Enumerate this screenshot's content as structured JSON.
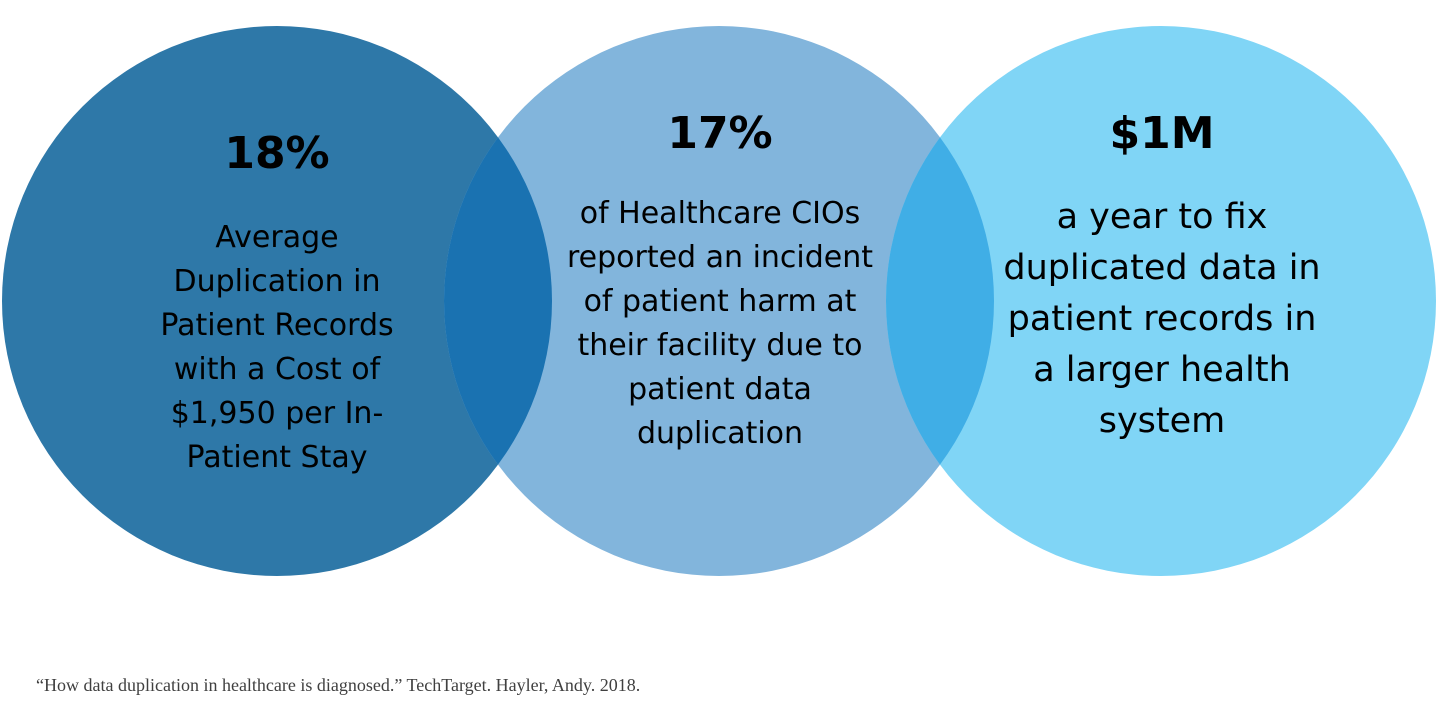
{
  "colors": {
    "circle_1": "#2e78a8",
    "circle_2": "#82b5dc",
    "circle_3": "#80d5f6",
    "overlap_1_2": "#1a72b1",
    "overlap_2_3": "#40aee6",
    "text": "#000000",
    "citation_text": "#404040"
  },
  "stats": [
    {
      "value": "18%",
      "description": "Average Duplication in Patient Records with a Cost of $1,950 per In-Patient Stay"
    },
    {
      "value": "17%",
      "description": "of Healthcare CIOs reported an incident of patient harm at their facility due to patient data duplication"
    },
    {
      "value": "$1M",
      "description": "a year to fix duplicated data in patient records in a larger health system"
    }
  ],
  "citation": "“How data duplication in healthcare is diagnosed.” TechTarget. Hayler, Andy. 2018."
}
